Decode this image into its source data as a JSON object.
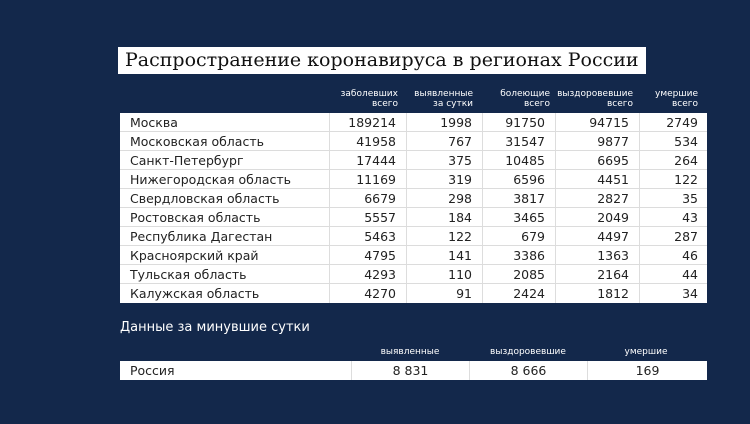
{
  "title": "Распространение коронавируса в регионах России",
  "headers": [
    {
      "l1": "заболевших",
      "l2": "всего"
    },
    {
      "l1": "выявленные",
      "l2": "за сутки"
    },
    {
      "l1": "болеющие",
      "l2": "всего"
    },
    {
      "l1": "выздоровевшие",
      "l2": "всего"
    },
    {
      "l1": "умершие",
      "l2": "всего"
    }
  ],
  "rows": [
    [
      "Москва",
      "189214",
      "1998",
      "91750",
      "94715",
      "2749"
    ],
    [
      "Московская область",
      "41958",
      "767",
      "31547",
      "9877",
      "534"
    ],
    [
      "Санкт-Петербург",
      "17444",
      "375",
      "10485",
      "6695",
      "264"
    ],
    [
      "Нижегородская область",
      "11169",
      "319",
      "6596",
      "4451",
      "122"
    ],
    [
      "Свердловская область",
      "6679",
      "298",
      "3817",
      "2827",
      "35"
    ],
    [
      "Ростовская область",
      "5557",
      "184",
      "3465",
      "2049",
      "43"
    ],
    [
      "Республика Дагестан",
      "5463",
      "122",
      "679",
      "4497",
      "287"
    ],
    [
      "Красноярский край",
      "4795",
      "141",
      "3386",
      "1363",
      "46"
    ],
    [
      "Тульская область",
      "4293",
      "110",
      "2085",
      "2164",
      "44"
    ],
    [
      "Калужская область",
      "4270",
      "91",
      "2424",
      "1812",
      "34"
    ]
  ],
  "summary": {
    "title": "Данные за минувшие сутки",
    "headers": [
      "выявленные",
      "выздоровевшие",
      "умершие"
    ],
    "label": "Россия",
    "values": [
      "8 831",
      "8 666",
      "169"
    ]
  }
}
